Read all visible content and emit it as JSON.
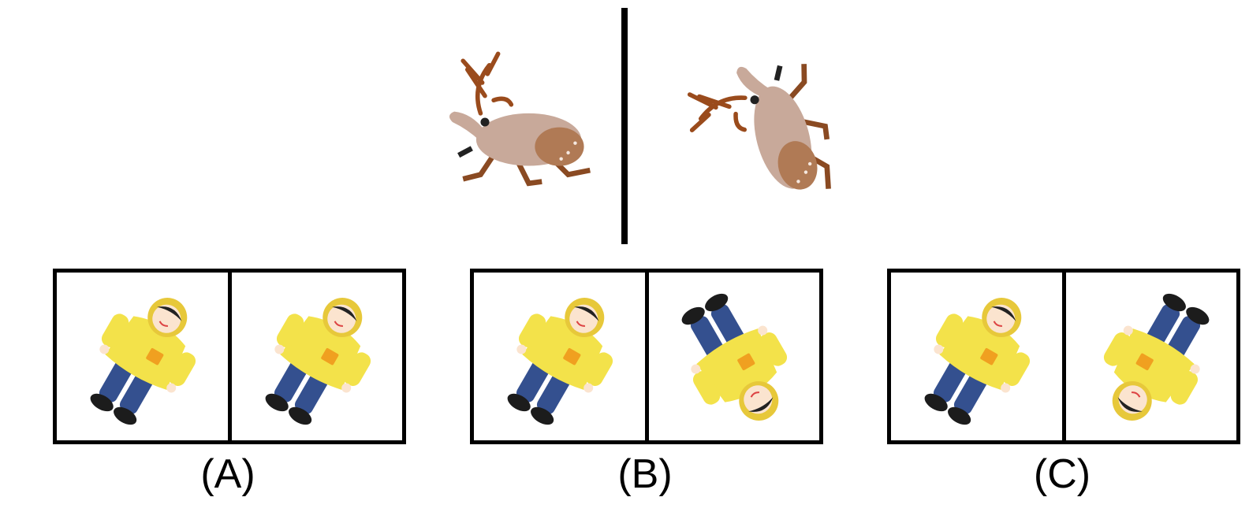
{
  "reference": {
    "left_object": "deer-figurine",
    "right_object": "deer-figurine-rotated"
  },
  "options": [
    {
      "label": "(A)",
      "left_doll": "doll-upright",
      "right_doll": "doll-upright"
    },
    {
      "label": "(B)",
      "left_doll": "doll-upright",
      "right_doll": "doll-flipped"
    },
    {
      "label": "(C)",
      "left_doll": "doll-upright",
      "right_doll": "doll-flipped-mirrored"
    }
  ],
  "colors": {
    "line": "#000000",
    "deer_body": "#c8a99a",
    "deer_antler": "#9a4b1c",
    "doll_coat": "#f3e24a",
    "doll_pants": "#34508f",
    "doll_patch": "#f0a020",
    "doll_shoe": "#1c1c1c",
    "doll_face": "#fbe4cf"
  }
}
